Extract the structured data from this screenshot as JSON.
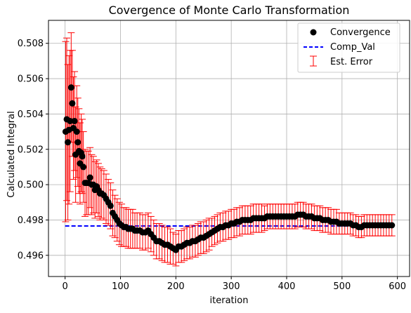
{
  "chart_data": {
    "type": "scatter",
    "title": "Covergence of Monte Carlo Transformation",
    "xlabel": "iteration",
    "ylabel": "Calculated Integral",
    "xlim": [
      -30,
      622
    ],
    "ylim": [
      0.4948,
      0.5093
    ],
    "xticks": [
      0,
      100,
      200,
      300,
      400,
      500,
      600
    ],
    "yticks": [
      0.496,
      0.498,
      0.5,
      0.502,
      0.504,
      0.506,
      0.508
    ],
    "ytick_labels": [
      "0.496",
      "0.498",
      "0.500",
      "0.502",
      "0.504",
      "0.506",
      "0.508"
    ],
    "grid": true,
    "legend_position": "top-right",
    "legend": [
      {
        "label": "Convergence",
        "kind": "marker",
        "color": "#000000"
      },
      {
        "label": "Comp_Val",
        "kind": "dashed-line",
        "color": "#0000ff"
      },
      {
        "label": "Est. Error",
        "kind": "errorbar",
        "color": "#ff0000"
      }
    ],
    "reference_line": {
      "name": "Comp_Val",
      "y": 0.49766,
      "x_range": [
        0,
        592
      ],
      "color": "#0000ff"
    },
    "series": [
      {
        "name": "Convergence",
        "color": "#000000",
        "errorbar_color": "#ff0000",
        "x": [
          1,
          3,
          5,
          7,
          9,
          11,
          13,
          15,
          17,
          19,
          21,
          23,
          25,
          27,
          29,
          31,
          33,
          36,
          39,
          42,
          45,
          48,
          51,
          54,
          57,
          60,
          63,
          66,
          70,
          74,
          78,
          82,
          86,
          90,
          94,
          98,
          102,
          106,
          110,
          114,
          118,
          122,
          126,
          130,
          135,
          140,
          145,
          150,
          155,
          160,
          165,
          170,
          175,
          180,
          185,
          190,
          195,
          200,
          205,
          210,
          215,
          220,
          225,
          230,
          235,
          240,
          245,
          250,
          255,
          260,
          265,
          270,
          275,
          280,
          285,
          290,
          295,
          300,
          305,
          310,
          315,
          320,
          325,
          330,
          335,
          340,
          345,
          350,
          355,
          360,
          365,
          370,
          375,
          380,
          385,
          390,
          395,
          400,
          405,
          410,
          415,
          420,
          425,
          430,
          435,
          440,
          445,
          450,
          455,
          460,
          465,
          470,
          475,
          480,
          485,
          490,
          495,
          500,
          505,
          510,
          515,
          520,
          525,
          530,
          535,
          540,
          545,
          550,
          555,
          560,
          565,
          570,
          575,
          580,
          585,
          590
        ],
        "y": [
          0.503,
          0.5037,
          0.5024,
          0.5031,
          0.5036,
          0.5055,
          0.5046,
          0.5032,
          0.5036,
          0.5017,
          0.503,
          0.5024,
          0.5019,
          0.5012,
          0.5018,
          0.5016,
          0.501,
          0.5001,
          0.5001,
          0.5001,
          0.5004,
          0.5,
          0.5,
          0.4997,
          0.4999,
          0.4997,
          0.4995,
          0.4995,
          0.4994,
          0.4992,
          0.499,
          0.4988,
          0.4984,
          0.4982,
          0.498,
          0.4978,
          0.4977,
          0.4976,
          0.4976,
          0.4975,
          0.4975,
          0.4975,
          0.4974,
          0.4974,
          0.4974,
          0.4973,
          0.4973,
          0.4974,
          0.4972,
          0.497,
          0.4968,
          0.4968,
          0.4967,
          0.4966,
          0.4966,
          0.4965,
          0.4964,
          0.4963,
          0.4965,
          0.4965,
          0.4966,
          0.4967,
          0.4967,
          0.4968,
          0.4968,
          0.4969,
          0.497,
          0.497,
          0.4971,
          0.4972,
          0.4973,
          0.4974,
          0.4975,
          0.4976,
          0.4976,
          0.4977,
          0.4977,
          0.4978,
          0.4978,
          0.4979,
          0.4979,
          0.498,
          0.498,
          0.498,
          0.498,
          0.4981,
          0.4981,
          0.4981,
          0.4981,
          0.4981,
          0.4982,
          0.4982,
          0.4982,
          0.4982,
          0.4982,
          0.4982,
          0.4982,
          0.4982,
          0.4982,
          0.4982,
          0.4982,
          0.4983,
          0.4983,
          0.4983,
          0.4982,
          0.4982,
          0.4982,
          0.4981,
          0.4981,
          0.4981,
          0.498,
          0.498,
          0.498,
          0.4979,
          0.4979,
          0.4979,
          0.4978,
          0.4978,
          0.4978,
          0.4978,
          0.4978,
          0.4977,
          0.4977,
          0.4976,
          0.4976,
          0.4977,
          0.4977,
          0.4977,
          0.4977,
          0.4977,
          0.4977,
          0.4977,
          0.4977,
          0.4977,
          0.4977,
          0.4977
        ],
        "yerr": [
          0.0051,
          0.0046,
          0.0044,
          0.0042,
          0.004,
          0.0031,
          0.003,
          0.0029,
          0.0028,
          0.0027,
          0.0026,
          0.0025,
          0.0024,
          0.0023,
          0.0022,
          0.0021,
          0.002,
          0.0019,
          0.0018,
          0.0018,
          0.0017,
          0.0017,
          0.0016,
          0.0016,
          0.0015,
          0.0015,
          0.0015,
          0.0014,
          0.0014,
          0.0014,
          0.0013,
          0.0013,
          0.0013,
          0.0012,
          0.0012,
          0.0012,
          0.0012,
          0.0011,
          0.0011,
          0.0011,
          0.0011,
          0.0011,
          0.001,
          0.001,
          0.001,
          0.001,
          0.001,
          0.001,
          0.001,
          0.001,
          0.001,
          0.001,
          0.001,
          0.001,
          0.001,
          0.001,
          0.0009,
          0.0009,
          0.0009,
          0.0009,
          0.0009,
          0.0009,
          0.0009,
          0.0009,
          0.0009,
          0.0009,
          0.0009,
          0.0009,
          0.0009,
          0.0009,
          0.0008,
          0.0008,
          0.0008,
          0.0008,
          0.0008,
          0.0008,
          0.0008,
          0.0008,
          0.0008,
          0.0008,
          0.0008,
          0.0008,
          0.0008,
          0.0008,
          0.0008,
          0.0008,
          0.0008,
          0.0008,
          0.0008,
          0.0007,
          0.0007,
          0.0007,
          0.0007,
          0.0007,
          0.0007,
          0.0007,
          0.0007,
          0.0007,
          0.0007,
          0.0007,
          0.0007,
          0.0007,
          0.0007,
          0.0007,
          0.0007,
          0.0007,
          0.0007,
          0.0007,
          0.0007,
          0.0007,
          0.0007,
          0.0007,
          0.0007,
          0.0007,
          0.0007,
          0.0007,
          0.0006,
          0.0006,
          0.0006,
          0.0006,
          0.0006,
          0.0006,
          0.0006,
          0.0006,
          0.0006,
          0.0006,
          0.0006,
          0.0006,
          0.0006,
          0.0006,
          0.0006,
          0.0006,
          0.0006,
          0.0006,
          0.0006,
          0.0006
        ]
      }
    ]
  }
}
